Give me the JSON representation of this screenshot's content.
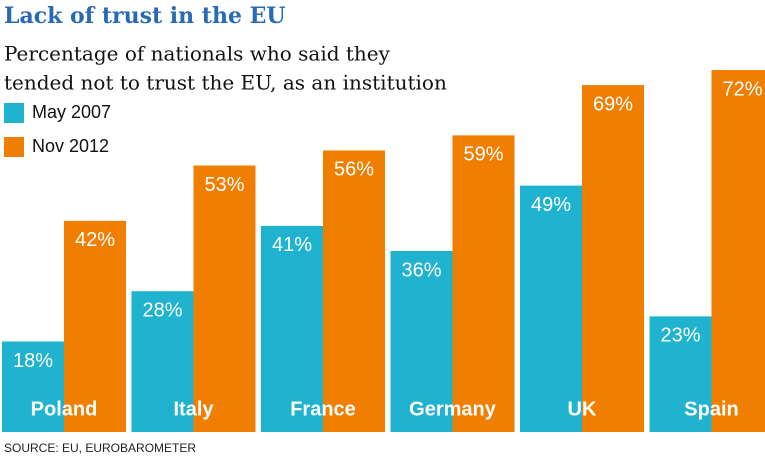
{
  "chart_data": {
    "type": "bar",
    "title": "Lack of trust in the EU",
    "subtitle": [
      "Percentage of nationals who said they",
      "tended not to trust the EU, as an institution"
    ],
    "categories": [
      "Poland",
      "Italy",
      "France",
      "Germany",
      "UK",
      "Spain"
    ],
    "series": [
      {
        "name": "May 2007",
        "color": "#1fb3cf",
        "values": [
          18,
          28,
          41,
          36,
          49,
          23
        ],
        "value_labels": [
          "18%",
          "28%",
          "41%",
          "36%",
          "49%",
          "23%"
        ]
      },
      {
        "name": "Nov 2012",
        "color": "#f07e00",
        "values": [
          42,
          53,
          56,
          59,
          69,
          72
        ],
        "value_labels": [
          "42%",
          "53%",
          "56%",
          "59%",
          "69%",
          "72%"
        ]
      }
    ],
    "source": "SOURCE: EU, EUROBAROMETER"
  }
}
